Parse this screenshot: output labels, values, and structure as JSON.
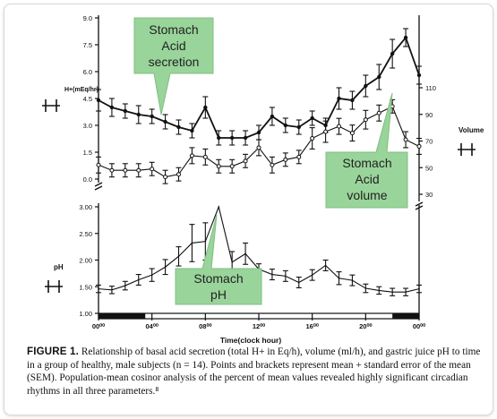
{
  "chart_data": [
    {
      "type": "line",
      "panel": "top",
      "x_tick_labels": [
        "00⁰⁰",
        "04⁰⁰",
        "08⁰⁰",
        "12⁰⁰",
        "16⁰⁰",
        "20⁰⁰",
        "00⁰⁰"
      ],
      "xlabel": "Time(clock hour)",
      "xlim": [
        0,
        24
      ],
      "left_axis": {
        "label": "H+(mEq/hr)",
        "ylim": [
          0,
          9
        ],
        "ticks": [
          "0.0",
          "1.5",
          "3.0",
          "4.5",
          "6.0",
          "7.5",
          "9.0"
        ]
      },
      "right_axis": {
        "label": "Volume",
        "ylim": [
          30,
          110
        ],
        "ticks": [
          "30",
          "50",
          "70",
          "90",
          "110"
        ]
      },
      "series": [
        {
          "axis": "left",
          "marker": "filled",
          "x": [
            0,
            1,
            2,
            3,
            4,
            5,
            6,
            7,
            8,
            9,
            10,
            11,
            12,
            13,
            14,
            15,
            16,
            17,
            18,
            19,
            20,
            21,
            22,
            23,
            24
          ],
          "values": [
            4.4,
            4.0,
            3.8,
            3.6,
            3.5,
            3.2,
            2.9,
            2.7,
            4.0,
            2.3,
            2.3,
            2.3,
            2.6,
            3.5,
            3.0,
            2.9,
            3.4,
            3.0,
            4.5,
            4.4,
            5.2,
            5.7,
            7.0,
            7.9,
            5.8
          ],
          "errors": [
            0.6,
            0.5,
            0.4,
            0.5,
            0.4,
            0.4,
            0.4,
            0.4,
            0.6,
            0.4,
            0.4,
            0.4,
            0.4,
            0.5,
            0.4,
            0.4,
            0.4,
            0.4,
            0.6,
            0.5,
            0.6,
            0.7,
            0.8,
            0.5,
            0.5
          ]
        },
        {
          "axis": "right",
          "marker": "open",
          "x": [
            0,
            1,
            2,
            3,
            4,
            5,
            6,
            7,
            8,
            9,
            10,
            11,
            12,
            13,
            14,
            15,
            16,
            17,
            18,
            19,
            20,
            21,
            22,
            23,
            24
          ],
          "values": [
            52,
            48,
            48,
            48,
            49,
            43,
            45,
            59,
            58,
            51,
            51,
            55,
            65,
            52,
            56,
            58,
            72,
            77,
            81,
            76,
            86,
            91,
            96,
            71,
            66
          ],
          "errors": [
            6,
            5,
            5,
            5,
            5,
            5,
            5,
            6,
            6,
            5,
            5,
            5,
            6,
            6,
            5,
            5,
            8,
            8,
            6,
            6,
            7,
            6,
            5,
            6,
            6
          ]
        }
      ]
    },
    {
      "type": "line",
      "panel": "bottom",
      "ylabel": "pH",
      "ylim": [
        1.0,
        3.0
      ],
      "y_ticks": [
        "1.00",
        "1.50",
        "2.00",
        "2.50",
        "3.00"
      ],
      "series": [
        {
          "marker": "none",
          "x": [
            0,
            1,
            2,
            3,
            4,
            5,
            6,
            7,
            8,
            9,
            10,
            11,
            12,
            13,
            14,
            15,
            16,
            17,
            18,
            19,
            20,
            21,
            22,
            23,
            24
          ],
          "values": [
            1.46,
            1.44,
            1.52,
            1.63,
            1.72,
            1.87,
            2.07,
            2.32,
            2.35,
            3.0,
            1.96,
            2.12,
            1.83,
            1.73,
            1.7,
            1.58,
            1.72,
            1.9,
            1.66,
            1.62,
            1.47,
            1.43,
            1.4,
            1.4,
            1.46
          ],
          "errors": [
            0.07,
            0.07,
            0.08,
            0.1,
            0.12,
            0.14,
            0.18,
            0.35,
            0.35,
            0.0,
            0.2,
            0.2,
            0.1,
            0.1,
            0.1,
            0.1,
            0.1,
            0.1,
            0.12,
            0.1,
            0.08,
            0.07,
            0.07,
            0.07,
            0.07
          ]
        }
      ]
    }
  ],
  "callouts": {
    "secretion": [
      "Stomach",
      "Acid",
      "secretion"
    ],
    "volume": [
      "Stomach",
      "Acid",
      "volume"
    ],
    "ph": [
      "Stomach",
      "pH"
    ]
  },
  "caption": {
    "label": "FIGURE 1.",
    "text": "Relationship of basal acid secretion (total H+ in Eq/h), volume (ml/h), and gastric juice pH to time in a group of healthy, male subjects (n = 14). Points and brackets represent mean + standard error of the mean (SEM). Population-mean cosinor analysis of the percent of mean values revealed highly significant circadian rhythms in all three parameters.⁸"
  },
  "colors": {
    "callout_fill": "#99d49a",
    "callout_stroke": "#7fbf80",
    "ink": "#111111",
    "frame_border": "#d9d9d9"
  },
  "icons": [
    "h-bracket-icon",
    "night-bar-icon"
  ]
}
